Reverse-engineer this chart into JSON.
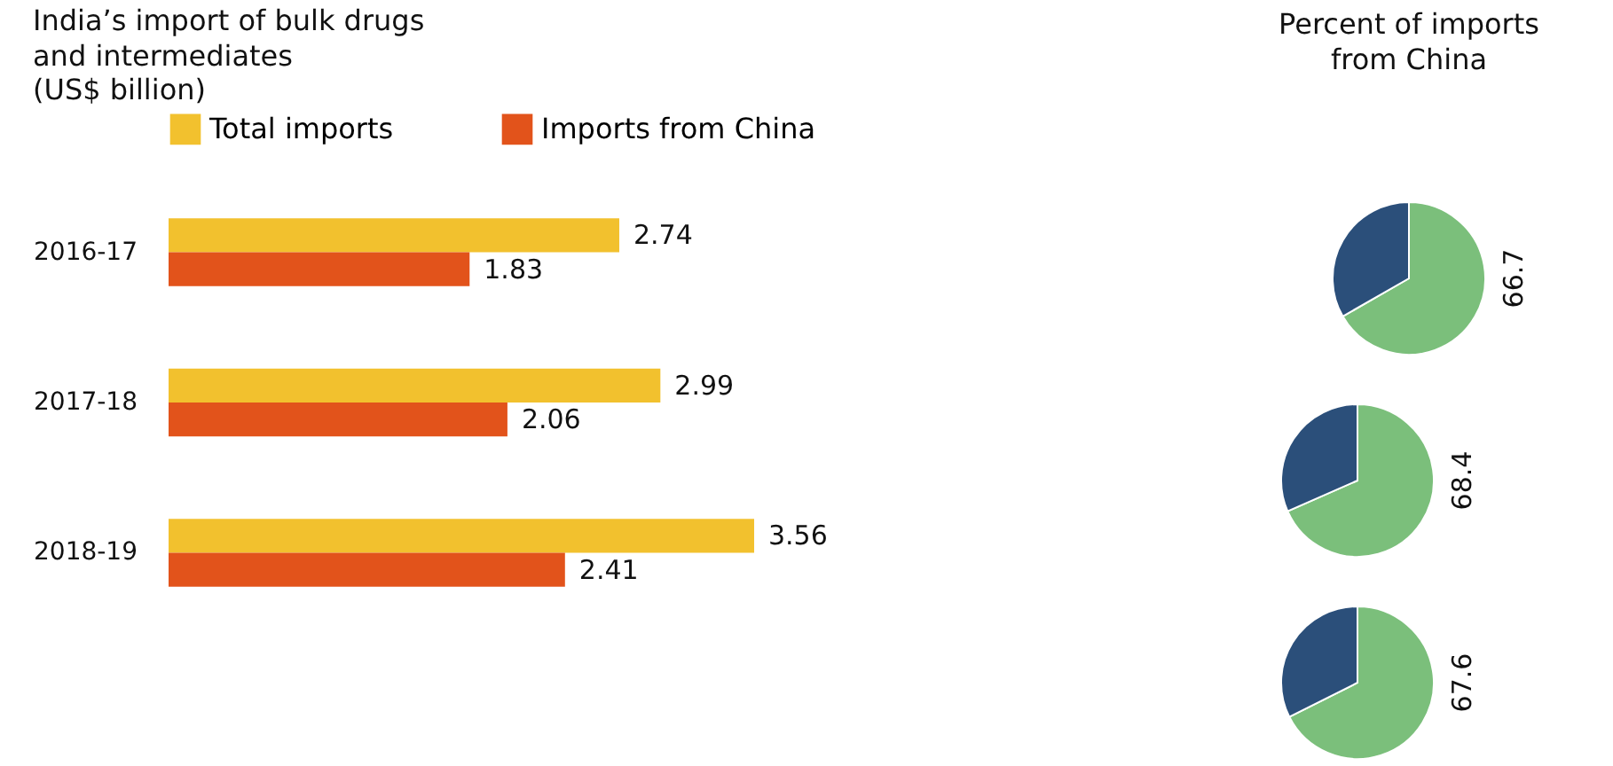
{
  "chart_data": [
    {
      "type": "bar",
      "orientation": "horizontal",
      "title": "India’s import of bulk drugs and intermediates",
      "subtitle": "(US$ billion)",
      "categories": [
        "2016-17",
        "2017-18",
        "2018-19"
      ],
      "series": [
        {
          "name": "Total imports",
          "color": "#f2c12e",
          "values": [
            2.74,
            2.99,
            3.56
          ]
        },
        {
          "name": "Imports from China",
          "color": "#e2531b",
          "values": [
            1.83,
            2.06,
            2.41
          ]
        }
      ],
      "data_labels": true,
      "legend": "top",
      "tick_labels": "y",
      "grid": false
    },
    {
      "type": "pie",
      "title": "Percent of imports from China",
      "categories": [
        null,
        null
      ],
      "values": [
        66.7,
        33.3
      ],
      "colors": [
        "#7bbf7b",
        "#2b4f7a"
      ],
      "value_labels": [
        "66.7",
        null
      ]
    },
    {
      "type": "pie",
      "categories": [
        null,
        null
      ],
      "values": [
        68.4,
        31.6
      ],
      "colors": [
        "#7bbf7b",
        "#2b4f7a"
      ],
      "value_labels": [
        "68.4",
        null
      ]
    },
    {
      "type": "pie",
      "categories": [
        null,
        null
      ],
      "values": [
        67.6,
        32.4
      ],
      "colors": [
        "#7bbf7b",
        "#2b4f7a"
      ],
      "value_labels": [
        "67.6",
        null
      ]
    }
  ]
}
